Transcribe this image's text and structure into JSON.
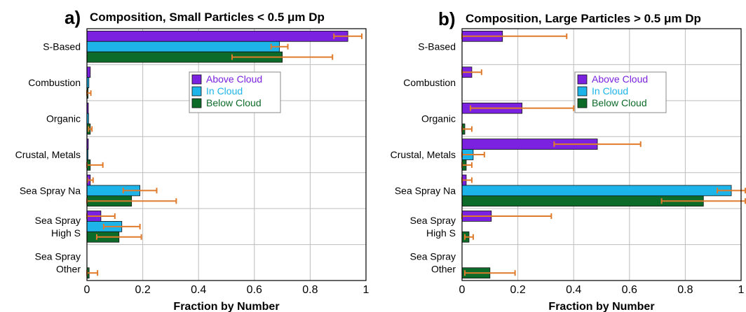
{
  "chart_data": [
    {
      "type": "bar",
      "orientation": "horizontal",
      "panel": "a)",
      "title": "Composition, Small Particles < 0.5 μm Dp",
      "xlabel": "Fraction by Number",
      "ylabel": "",
      "xlim": [
        0,
        1
      ],
      "xticks": [
        "0",
        "0.2",
        "0.4",
        "0.6",
        "0.8",
        "1"
      ],
      "categories": [
        "S-Based",
        "Combustion",
        "Organic",
        "Crustal, Metals",
        "Sea Spray Na",
        "Sea Spray\nHigh S",
        "Sea Spray\nOther"
      ],
      "series": [
        {
          "name": "Above Cloud",
          "color": "#7a22e0",
          "values": [
            0.935,
            0.012,
            0.005,
            0.005,
            0.012,
            0.05,
            0.0
          ],
          "err": [
            0.05,
            0.0,
            0.0,
            0.0,
            0.01,
            0.05,
            0.0
          ]
        },
        {
          "name": "In Cloud",
          "color": "#1db4ea",
          "values": [
            0.69,
            0.007,
            0.006,
            0.004,
            0.19,
            0.125,
            0.0
          ],
          "err": [
            0.03,
            0.0,
            0.0,
            0.0,
            0.06,
            0.065,
            0.0
          ]
        },
        {
          "name": "Below Cloud",
          "color": "#0d6b2a",
          "values": [
            0.7,
            0.004,
            0.012,
            0.012,
            0.16,
            0.115,
            0.008
          ],
          "err": [
            0.18,
            0.01,
            0.006,
            0.045,
            0.16,
            0.08,
            0.03
          ]
        }
      ],
      "grid": true,
      "legend_position": "upper-right"
    },
    {
      "type": "bar",
      "orientation": "horizontal",
      "panel": "b)",
      "title": "Composition, Large Particles > 0.5 μm Dp",
      "xlabel": "Fraction by Number",
      "ylabel": "",
      "xlim": [
        0,
        1
      ],
      "xticks": [
        "0",
        "0.2",
        "0.4",
        "0.6",
        "0.8",
        "1"
      ],
      "categories": [
        "S-Based",
        "Combustion",
        "Organic",
        "Crustal, Metals",
        "Sea Spray Na",
        "Sea Spray\nHigh S",
        "Sea Spray\nOther"
      ],
      "series": [
        {
          "name": "Above Cloud",
          "color": "#7a22e0",
          "values": [
            0.145,
            0.035,
            0.215,
            0.485,
            0.015,
            0.105,
            0.0
          ],
          "err": [
            0.23,
            0.035,
            0.185,
            0.155,
            0.02,
            0.215,
            0.0
          ]
        },
        {
          "name": "In Cloud",
          "color": "#1db4ea",
          "values": [
            0.0,
            0.0,
            0.0,
            0.04,
            0.965,
            0.0,
            0.0
          ],
          "err": [
            0.0,
            0.0,
            0.0,
            0.04,
            0.05,
            0.0,
            0.0
          ]
        },
        {
          "name": "Below Cloud",
          "color": "#0d6b2a",
          "values": [
            0.0,
            0.0,
            0.01,
            0.015,
            0.865,
            0.025,
            0.1
          ],
          "err": [
            0.0,
            0.0,
            0.025,
            0.02,
            0.15,
            0.015,
            0.09
          ]
        }
      ],
      "grid": true,
      "legend_position": "upper-right"
    }
  ]
}
